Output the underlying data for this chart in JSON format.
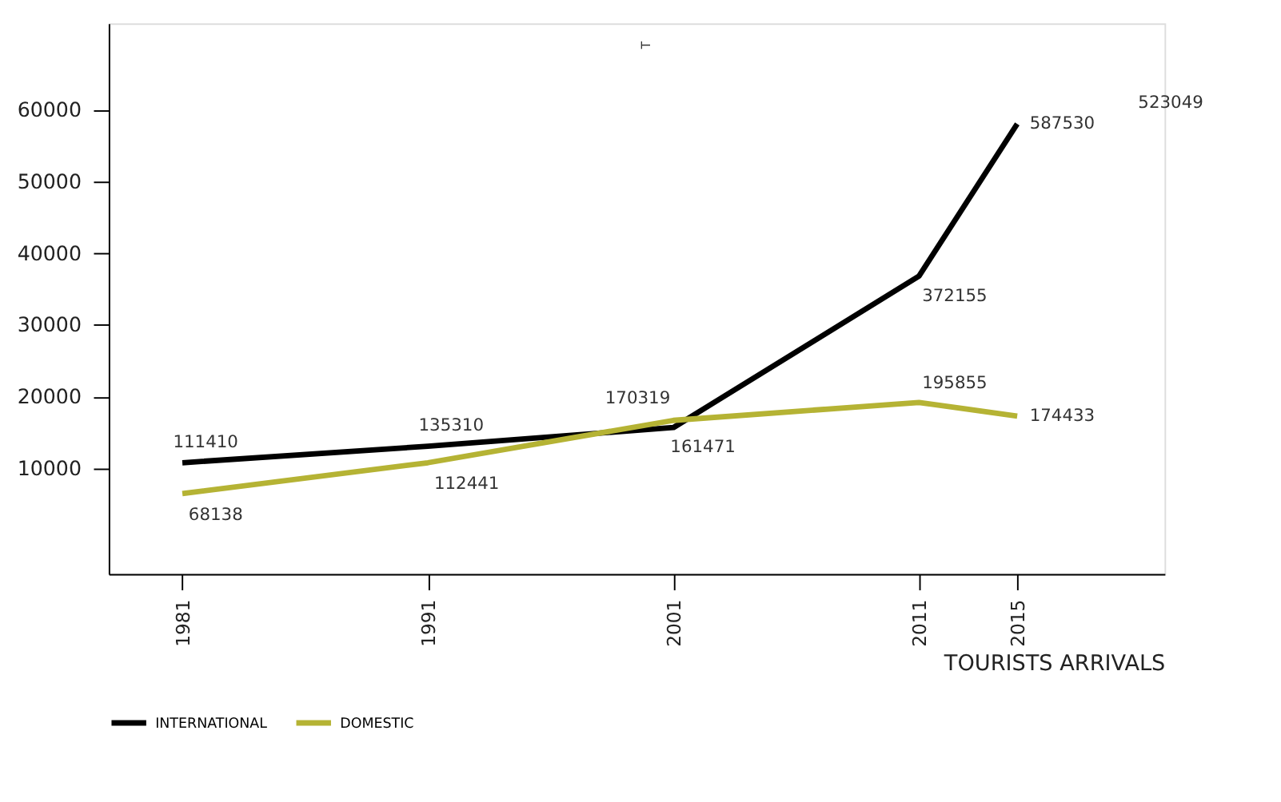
{
  "chart_data": {
    "type": "line",
    "x": [
      1981,
      1991,
      2001,
      2011,
      2015
    ],
    "xlim": [
      1978,
      2021
    ],
    "xticks": [
      1981,
      1991,
      2001,
      2011,
      2015
    ],
    "ylim": [
      -4700,
      72000
    ],
    "yticks": [
      10000,
      20000,
      30000,
      40000,
      50000,
      60000
    ],
    "xlabel": "TOURISTS ARRIVALS",
    "series": [
      {
        "name": "INTERNATIONAL",
        "color": "#000000",
        "values": [
          10800,
          13100,
          15700,
          36800,
          58000
        ]
      },
      {
        "name": "DOMESTIC",
        "color": "#b5b334",
        "values": [
          6500,
          10800,
          16700,
          19200,
          17300
        ]
      }
    ],
    "annotations": [
      {
        "text": "111410",
        "x": 1981,
        "y": 10800
      },
      {
        "text": "135310",
        "x": 1991,
        "y": 13100
      },
      {
        "text": "161471",
        "x": 2001,
        "y": 15700
      },
      {
        "text": "372155",
        "x": 2011,
        "y": 36800
      },
      {
        "text": "587530",
        "x": 2015,
        "y": 58000
      },
      {
        "text": "68138",
        "x": 1981,
        "y": 6500
      },
      {
        "text": "112441",
        "x": 1991,
        "y": 10800
      },
      {
        "text": "170319",
        "x": 2001,
        "y": 16700
      },
      {
        "text": "195855",
        "x": 2011,
        "y": 19200
      },
      {
        "text": "174433",
        "x": 2015,
        "y": 17300
      },
      "523049",
      "T"
    ],
    "legend": "bottom",
    "grid": false,
    "marker": "none",
    "line_style": "solid"
  }
}
